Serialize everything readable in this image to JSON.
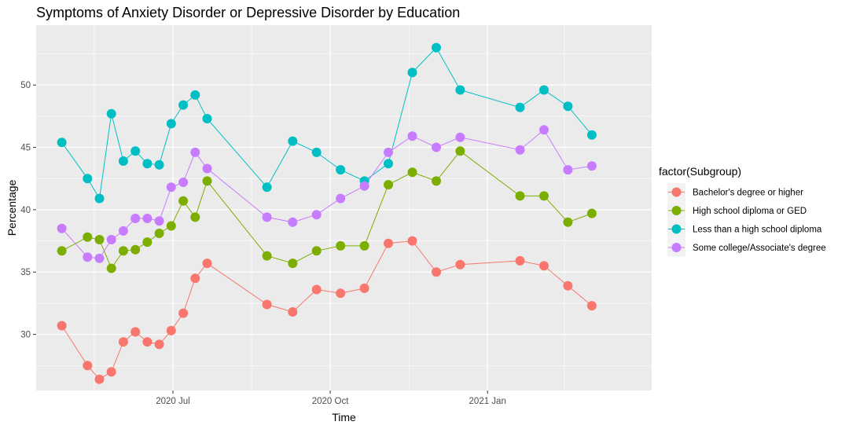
{
  "chart_data": {
    "type": "line",
    "title": "Symptoms of Anxiety Disorder or Depressive Disorder by Education",
    "xlabel": "Time",
    "ylabel": "Percentage",
    "ylim": [
      25.5,
      54.8
    ],
    "xlim": [
      "2020-04-12",
      "2021-04-07"
    ],
    "y_ticks": [
      30,
      35,
      40,
      45,
      50
    ],
    "x_ticks": [
      {
        "date": "2020-07-01",
        "label": "2020 Jul"
      },
      {
        "date": "2020-10-01",
        "label": "2020 Oct"
      },
      {
        "date": "2021-01-01",
        "label": "2021 Jan"
      }
    ],
    "grid": true,
    "legend": {
      "title": "factor(Subgroup)",
      "position": "right"
    },
    "x": [
      "2020-04-27",
      "2020-05-12",
      "2020-05-19",
      "2020-05-26",
      "2020-06-02",
      "2020-06-09",
      "2020-06-16",
      "2020-06-23",
      "2020-06-30",
      "2020-07-07",
      "2020-07-14",
      "2020-07-21",
      "2020-08-25",
      "2020-09-09",
      "2020-09-23",
      "2020-10-07",
      "2020-10-21",
      "2020-11-04",
      "2020-11-18",
      "2020-12-02",
      "2020-12-16",
      "2021-01-06",
      "2021-01-20",
      "2021-02-03",
      "2021-02-17",
      "2021-03-03",
      "2021-03-17"
    ],
    "series": [
      {
        "name": "Bachelor's degree or higher",
        "color": "#F8766D",
        "values": [
          30.7,
          27.5,
          26.4,
          27.0,
          29.4,
          30.2,
          29.4,
          29.2,
          30.3,
          31.7,
          34.5,
          35.7,
          32.4,
          31.8,
          33.6,
          33.3,
          33.7,
          37.3,
          37.5,
          35.0,
          35.6,
          null,
          35.9,
          35.5,
          33.9,
          32.3,
          null
        ]
      },
      {
        "name": "High school diploma or GED",
        "color": "#7CAE00",
        "values": [
          36.7,
          37.8,
          37.6,
          35.3,
          36.7,
          36.8,
          37.4,
          38.1,
          38.7,
          40.7,
          39.4,
          42.3,
          36.3,
          35.7,
          36.7,
          37.1,
          37.1,
          42.0,
          43.0,
          42.3,
          44.7,
          null,
          41.1,
          41.1,
          39.0,
          39.7,
          null
        ]
      },
      {
        "name": "Less than a high school diploma",
        "color": "#00BFC4",
        "values": [
          45.4,
          42.5,
          40.9,
          47.7,
          43.9,
          44.7,
          43.7,
          43.6,
          46.9,
          48.4,
          49.2,
          47.3,
          41.8,
          45.5,
          44.6,
          43.2,
          42.3,
          43.7,
          51.0,
          53.0,
          49.6,
          null,
          48.2,
          49.6,
          48.3,
          46.0,
          null
        ]
      },
      {
        "name": "Some college/Associate's degree",
        "color": "#C77CFF",
        "values": [
          38.5,
          36.2,
          36.1,
          37.6,
          38.3,
          39.3,
          39.3,
          39.1,
          41.8,
          42.2,
          44.6,
          43.3,
          39.4,
          39.0,
          39.6,
          40.9,
          41.9,
          44.6,
          45.9,
          45.0,
          45.8,
          null,
          44.8,
          46.4,
          43.2,
          43.5,
          null
        ]
      }
    ]
  }
}
